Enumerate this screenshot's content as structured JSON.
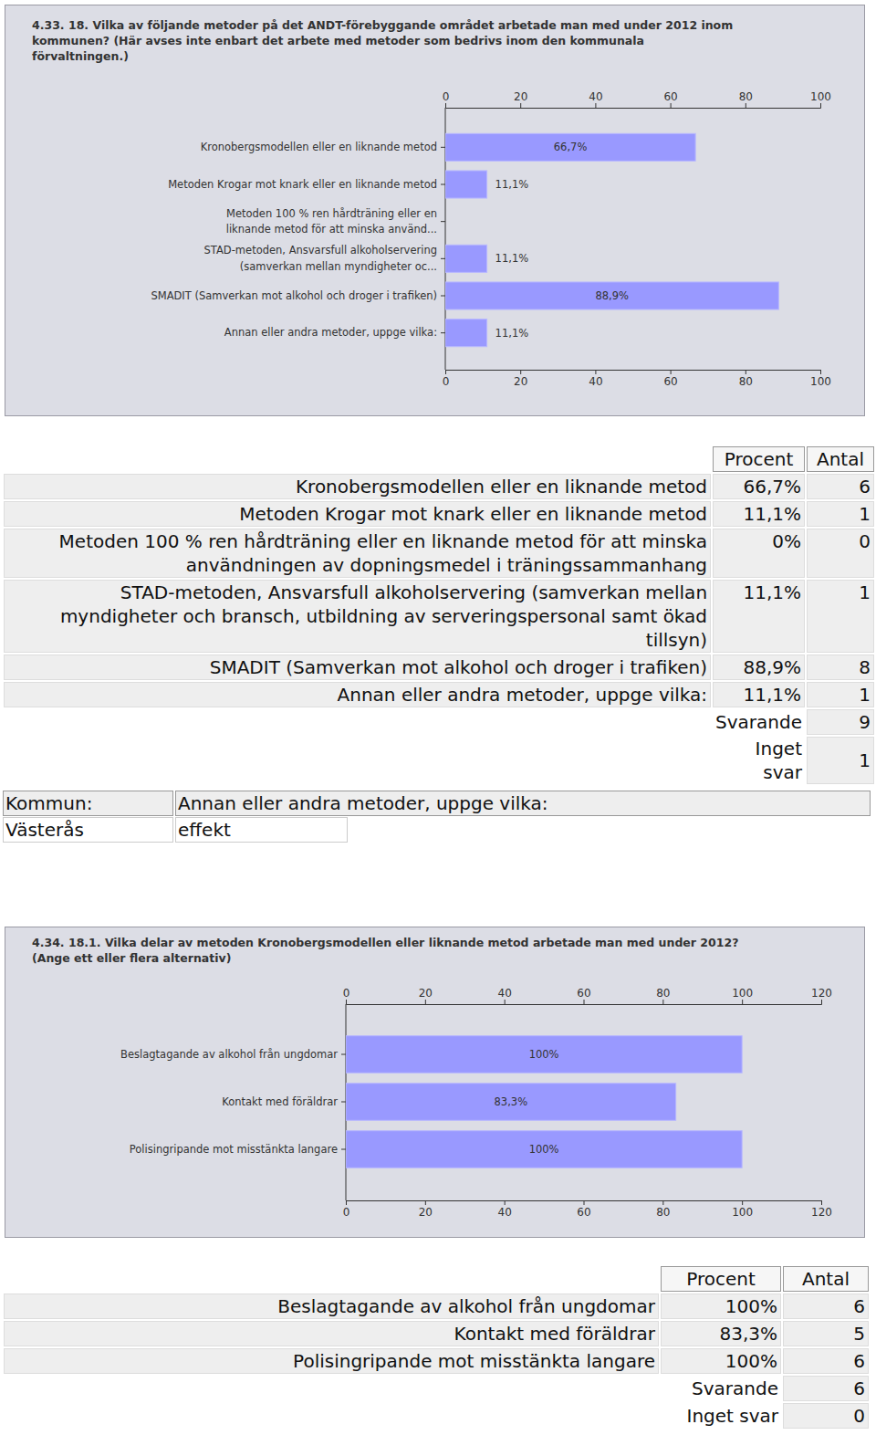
{
  "chart_data": [
    {
      "type": "bar",
      "orientation": "horizontal",
      "title": "4.33. 18. Vilka av följande metoder på det ANDT-förebyggande området arbetade man med under 2012 inom\nkommunen? (Här avses inte enbart det arbete med metoder som bedrivs inom den kommunala\nförvaltningen.)",
      "categories": [
        "Kronobergsmodellen eller en liknande metod",
        "Metoden Krogar mot knark eller en liknande metod",
        "Metoden 100 % ren hårdträning eller en\nliknande metod för att minska använd...",
        "STAD-metoden, Ansvarsfull alkoholservering\n(samverkan mellan myndigheter oc...",
        "SMADIT (Samverkan mot alkohol och droger i trafiken)",
        "Annan eller andra metoder, uppge vilka:"
      ],
      "values": [
        66.7,
        11.1,
        0,
        11.1,
        88.9,
        11.1
      ],
      "value_labels": [
        "66,7%",
        "11,1%",
        null,
        "11,1%",
        "88,9%",
        "11,1%"
      ],
      "data_labels": true,
      "color": "#9999ff",
      "grid": false,
      "xlim": [
        0,
        100
      ],
      "xticks": [
        0,
        20,
        40,
        60,
        80,
        100
      ]
    },
    {
      "type": "bar",
      "orientation": "horizontal",
      "title": "4.34. 18.1. Vilka delar av metoden Kronobergsmodellen eller liknande metod arbetade man med under 2012?\n(Ange ett eller flera alternativ)",
      "categories": [
        "Beslagtagande av alkohol från ungdomar",
        "Kontakt med föräldrar",
        "Polisingripande mot misstänkta langare"
      ],
      "values": [
        100,
        83.3,
        100
      ],
      "value_labels": [
        "100%",
        "83,3%",
        "100%"
      ],
      "data_labels": true,
      "color": "#9999ff",
      "grid": false,
      "xlim": [
        0,
        120
      ],
      "xticks": [
        0,
        20,
        40,
        60,
        80,
        100,
        120
      ]
    }
  ],
  "tables": [
    {
      "columns": [
        "Procent",
        "Antal"
      ],
      "rows": [
        [
          "Kronobergsmodellen eller en liknande metod",
          "66,7%",
          6
        ],
        [
          "Metoden Krogar mot knark eller en liknande metod",
          "11,1%",
          1
        ],
        [
          "Metoden 100 % ren hårdträning eller en liknande metod för att minska användningen av dopningsmedel i träningssammanhang",
          "0%",
          0
        ],
        [
          "STAD-metoden, Ansvarsfull alkoholservering (samverkan mellan myndigheter och bransch, utbildning av serveringspersonal samt ökad tillsyn)",
          "11,1%",
          1
        ],
        [
          "SMADIT (Samverkan mot alkohol och droger i trafiken)",
          "88,9%",
          8
        ],
        [
          "Annan eller andra metoder, uppge vilka:",
          "11,1%",
          1
        ]
      ],
      "totals": [
        [
          "Svarande",
          9
        ],
        [
          "Inget svar",
          1
        ]
      ]
    },
    {
      "columns": [
        "Kommun:",
        "Annan eller andra metoder, uppge vilka:"
      ],
      "rows": [
        [
          "Västerås",
          "effekt"
        ]
      ]
    },
    {
      "columns": [
        "Procent",
        "Antal"
      ],
      "rows": [
        [
          "Beslagtagande av alkohol från ungdomar",
          "100%",
          6
        ],
        [
          "Kontakt med föräldrar",
          "83,3%",
          5
        ],
        [
          "Polisingripande mot misstänkta langare",
          "100%",
          6
        ]
      ],
      "totals": [
        [
          "Svarande",
          6
        ],
        [
          "Inget svar",
          0
        ]
      ]
    }
  ]
}
